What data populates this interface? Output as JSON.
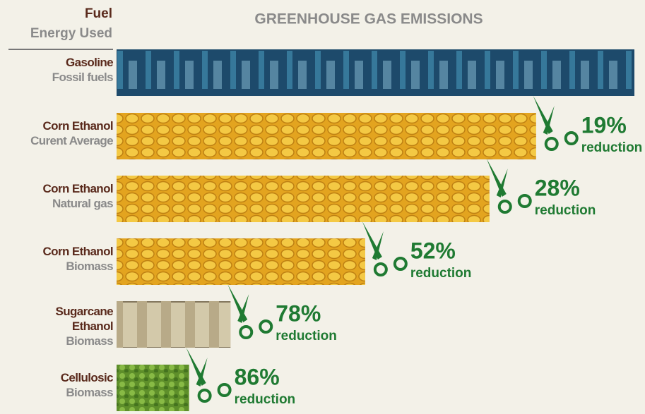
{
  "chart_data": {
    "type": "bar",
    "orientation": "horizontal",
    "title": "GREENHOUSE GAS EMISSIONS",
    "category_header": "Fuel",
    "energy_header": "Energy Used",
    "categories": [
      "Gasoline",
      "Corn Ethanol",
      "Corn Ethanol",
      "Corn Ethanol",
      "Sugarcane Ethanol",
      "Cellulosic"
    ],
    "energy": [
      "Fossil fuels",
      "Curent Average",
      "Natural gas",
      "Biomass",
      "Biomass",
      "Biomass"
    ],
    "values": [
      100,
      81,
      72,
      48,
      22,
      14
    ],
    "reduction_labels": [
      null,
      "19%",
      "28%",
      "52%",
      "78%",
      "86%"
    ],
    "reduction_word": "reduction",
    "colors": [
      "#1d4a6b",
      "#e3a41f",
      "#e3a41f",
      "#e3a41f",
      "#b8aa88",
      "#5e8f2a"
    ],
    "label_color": "#1f7a32",
    "xlim": [
      0,
      100
    ]
  }
}
